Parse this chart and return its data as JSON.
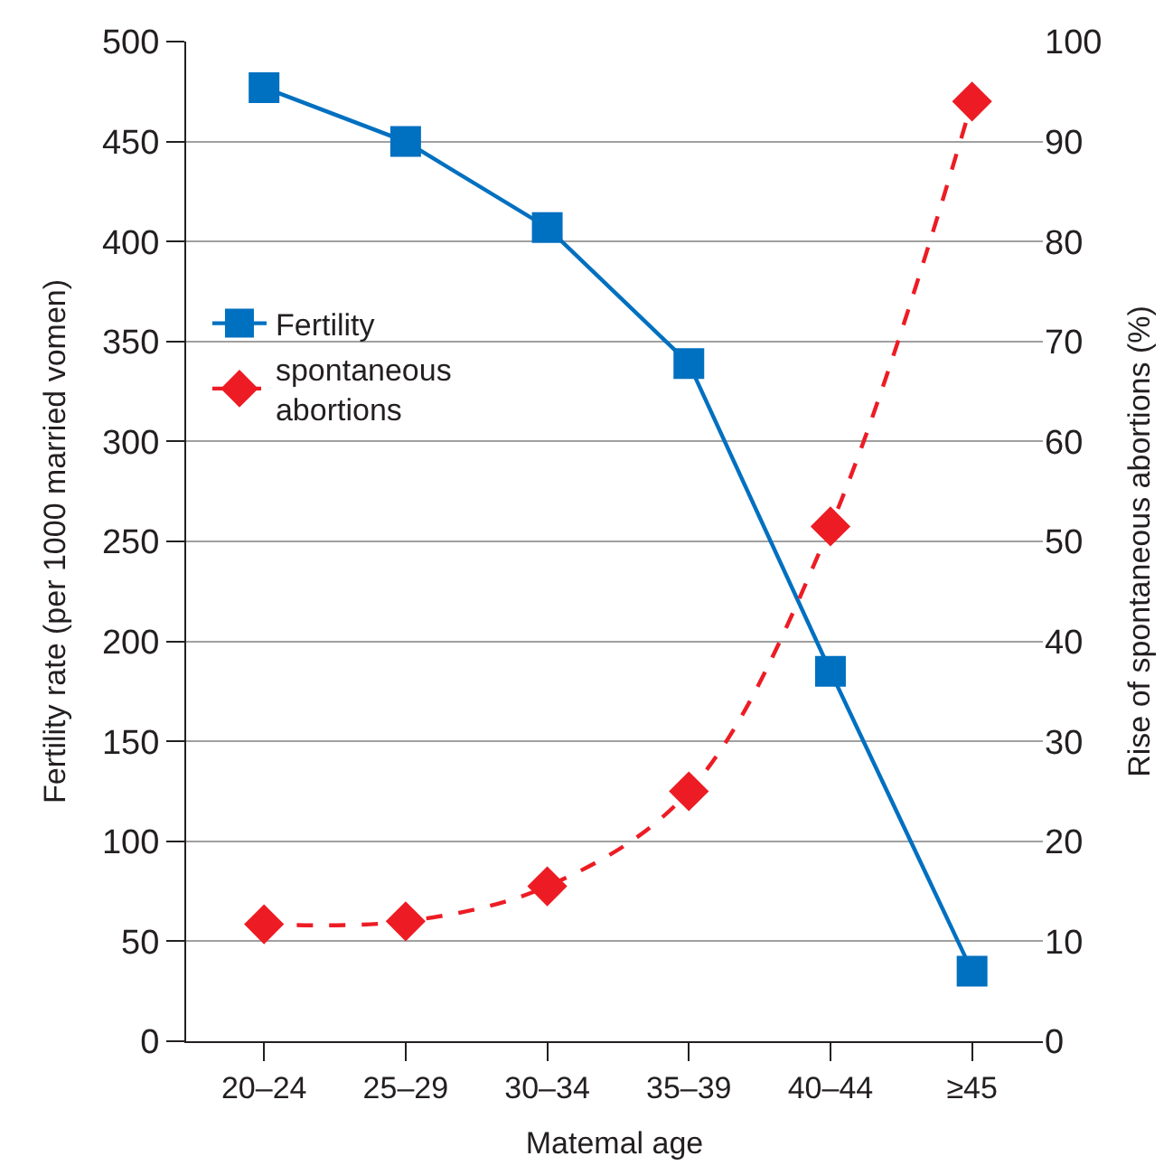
{
  "chart_data": {
    "type": "line",
    "xlabel": "Matemal age",
    "ylabel": "Fertility rate (per 1000 married vomen)",
    "y2label": "Rise of spontaneous abortions (%)",
    "categories": [
      "20–24",
      "25–29",
      "30–34",
      "35–39",
      "40–44",
      "≥45"
    ],
    "series": [
      {
        "name": "Fertility",
        "color": "#0070c0",
        "values": [
          477,
          450,
          407,
          339,
          185,
          35
        ],
        "marker": "square",
        "line_style": "solid"
      },
      {
        "name": "spontaneous abortions",
        "color": "#ed1c24",
        "values": [
          11.7,
          12,
          15.5,
          25,
          51.5,
          94
        ],
        "marker": "diamond",
        "line_style": "dashed",
        "axis": "y2"
      }
    ],
    "ylim": [
      0,
      500
    ],
    "yticks": [
      0,
      50,
      100,
      150,
      200,
      250,
      300,
      350,
      400,
      450,
      500
    ],
    "y2lim": [
      0,
      100
    ],
    "y2ticks": [
      0,
      10,
      20,
      30,
      40,
      50,
      60,
      70,
      80,
      90,
      100
    ],
    "grid": "y",
    "legend": "left"
  }
}
